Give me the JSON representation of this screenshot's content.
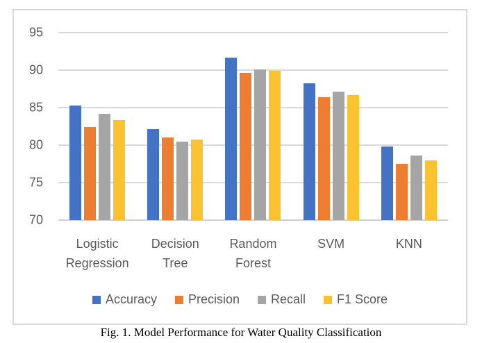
{
  "figure": {
    "caption": "Fig. 1. Model Performance for Water Quality Classification"
  },
  "chart_data": {
    "type": "bar",
    "title": "",
    "xlabel": "",
    "ylabel": "",
    "categories": [
      "Logistic Regression",
      "Decision Tree",
      "Random Forest",
      "SVM",
      "KNN"
    ],
    "series": [
      {
        "name": "Accuracy",
        "color": "#4472C4",
        "values": [
          85.3,
          82.1,
          91.7,
          88.2,
          79.8
        ]
      },
      {
        "name": "Precision",
        "color": "#ED7D31",
        "values": [
          82.4,
          81.0,
          89.6,
          86.4,
          77.5
        ]
      },
      {
        "name": "Recall",
        "color": "#A5A5A5",
        "values": [
          84.2,
          80.5,
          90.1,
          87.1,
          78.6
        ]
      },
      {
        "name": "F1 Score",
        "color": "#FCC331",
        "values": [
          83.3,
          80.7,
          89.9,
          86.7,
          78.0
        ]
      }
    ],
    "ylim": [
      70,
      95
    ],
    "yticks": [
      70,
      75,
      80,
      85,
      90,
      95
    ],
    "grid": true,
    "legend_position": "bottom"
  },
  "style": {
    "text_color": "#595959",
    "gridline_color": "#D9D9D9",
    "box_border_color": "#D9D9D9"
  }
}
